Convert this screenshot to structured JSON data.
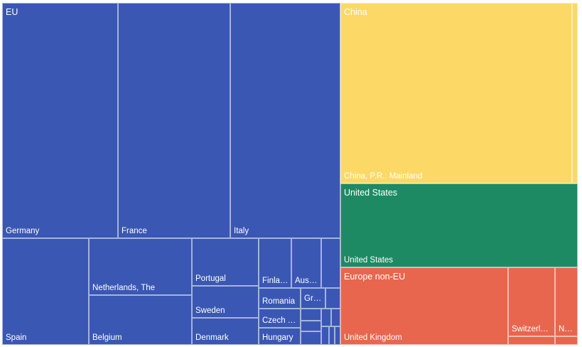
{
  "chart_data": {
    "type": "treemap",
    "groups": [
      {
        "name": "EU",
        "color": "#3a57b3",
        "items": [
          {
            "label": "Germany",
            "value": 540
          },
          {
            "label": "France",
            "value": 520
          },
          {
            "label": "Italy",
            "value": 500
          },
          {
            "label": "Spain",
            "value": 180
          },
          {
            "label": "Netherlands, The",
            "value": 95
          },
          {
            "label": "Belgium",
            "value": 85
          },
          {
            "label": "Portugal",
            "value": 62
          },
          {
            "label": "Sweden",
            "value": 42
          },
          {
            "label": "Denmark",
            "value": 38
          },
          {
            "label": "Finla…",
            "value": 35
          },
          {
            "label": "Aus…",
            "value": 30
          },
          {
            "label": "",
            "value": 20
          },
          {
            "label": "Romania",
            "value": 26
          },
          {
            "label": "Gr…",
            "value": 12
          },
          {
            "label": "",
            "value": 8
          },
          {
            "label": "Czech …",
            "value": 17
          },
          {
            "label": "Hungary",
            "value": 16
          },
          {
            "label": "",
            "value": 5
          },
          {
            "label": "",
            "value": 4
          },
          {
            "label": "",
            "value": 4
          },
          {
            "label": "",
            "value": 3
          },
          {
            "label": "",
            "value": 3
          },
          {
            "label": "",
            "value": 2
          },
          {
            "label": "",
            "value": 2
          },
          {
            "label": "",
            "value": 2
          }
        ]
      },
      {
        "name": "China",
        "color": "#fcd966",
        "items": [
          {
            "label": "China, P.R.: Mainland",
            "value": 820
          },
          {
            "label": "",
            "value": 12
          }
        ]
      },
      {
        "name": "United States",
        "color": "#1e8a63",
        "items": [
          {
            "label": "United States",
            "value": 390
          }
        ]
      },
      {
        "name": "Europe non-EU",
        "color": "#e8664e",
        "items": [
          {
            "label": "United Kingdom",
            "value": 260
          },
          {
            "label": "Switzerla…",
            "value": 70
          },
          {
            "label": "N…",
            "value": 28
          },
          {
            "label": "",
            "value": 6
          },
          {
            "label": "",
            "value": 4
          }
        ]
      }
    ]
  }
}
